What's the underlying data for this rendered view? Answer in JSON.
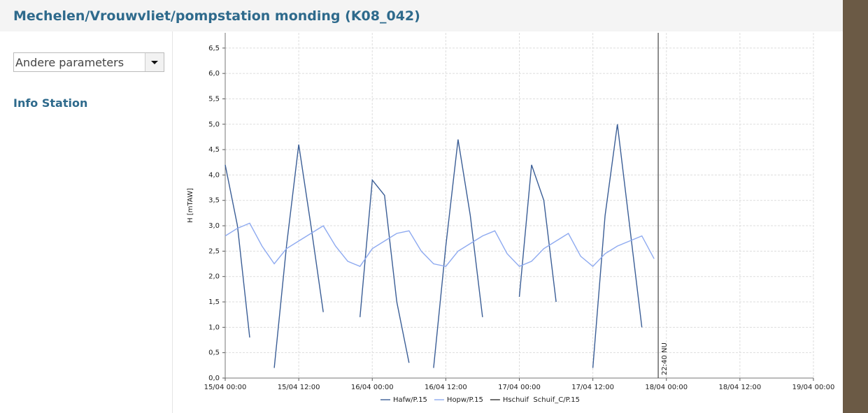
{
  "header": {
    "title": "Mechelen/Vrouwvliet/pompstation monding (K08_042)"
  },
  "sidebar": {
    "dropdown": "Andere parameters",
    "link": "Info Station"
  },
  "chart_data": {
    "type": "line",
    "ylabel": "H [mTAW]",
    "x": [
      "15/04 00:00",
      "15/04 02:00",
      "15/04 04:00",
      "15/04 06:00",
      "15/04 08:00",
      "15/04 10:00",
      "15/04 12:00",
      "15/04 14:00",
      "15/04 16:00",
      "15/04 18:00",
      "15/04 20:00",
      "15/04 22:00",
      "16/04 00:00",
      "16/04 02:00",
      "16/04 04:00",
      "16/04 06:00",
      "16/04 08:00",
      "16/04 10:00",
      "16/04 12:00",
      "16/04 14:00",
      "16/04 16:00",
      "16/04 18:00",
      "16/04 20:00",
      "16/04 22:00",
      "17/04 00:00",
      "17/04 02:00",
      "17/04 04:00",
      "17/04 06:00",
      "17/04 08:00",
      "17/04 10:00",
      "17/04 12:00",
      "17/04 14:00",
      "17/04 16:00",
      "17/04 18:00",
      "17/04 20:00",
      "17/04 22:00"
    ],
    "series": [
      {
        "name": "Hafw/P.15",
        "color": "#3b5e96",
        "values": [
          4.2,
          3.0,
          0.8,
          null,
          0.2,
          2.6,
          4.6,
          3.0,
          1.3,
          null,
          null,
          1.2,
          3.9,
          3.6,
          1.5,
          0.3,
          null,
          0.2,
          2.6,
          4.7,
          3.2,
          1.2,
          null,
          null,
          1.6,
          4.2,
          3.5,
          1.5,
          null,
          null,
          0.2,
          3.2,
          5.0,
          3.0,
          1.0,
          null
        ]
      },
      {
        "name": "Hopw/P.15",
        "color": "#8eaaf0",
        "values": [
          2.8,
          2.95,
          3.05,
          2.6,
          2.25,
          2.55,
          2.7,
          2.85,
          3.0,
          2.6,
          2.3,
          2.2,
          2.55,
          2.7,
          2.85,
          2.9,
          2.5,
          2.25,
          2.2,
          2.5,
          2.65,
          2.8,
          2.9,
          2.45,
          2.2,
          2.3,
          2.55,
          2.7,
          2.85,
          2.4,
          2.2,
          2.45,
          2.6,
          2.7,
          2.8,
          2.35
        ]
      },
      {
        "name": "Hschuif  Schuif_C/P.15",
        "color": "#333333",
        "values": [
          null,
          null,
          null,
          null,
          null,
          null,
          null,
          null,
          null,
          null,
          null,
          null,
          null,
          null,
          null,
          null,
          null,
          null,
          null,
          null,
          null,
          null,
          null,
          null,
          null,
          null,
          null,
          null,
          null,
          null,
          null,
          null,
          null,
          null,
          null,
          null
        ]
      }
    ],
    "xlim": [
      "15/04 00:00",
      "19/04 00:00"
    ],
    "xticks": [
      "15/04 00:00",
      "15/04 12:00",
      "16/04 00:00",
      "16/04 12:00",
      "17/04 00:00",
      "17/04 12:00",
      "18/04 00:00",
      "18/04 12:00",
      "19/04 00:00"
    ],
    "ylim": [
      0,
      6.8
    ],
    "yticks": [
      {
        "value": 0,
        "label": "0,0"
      },
      {
        "value": 0.5,
        "label": "0,5"
      },
      {
        "value": 1,
        "label": "1,0"
      },
      {
        "value": 1.5,
        "label": "1,5"
      },
      {
        "value": 2,
        "label": "2,0"
      },
      {
        "value": 2.5,
        "label": "2,5"
      },
      {
        "value": 3,
        "label": "3,0"
      },
      {
        "value": 3.5,
        "label": "3,5"
      },
      {
        "value": 4,
        "label": "4,0"
      },
      {
        "value": 4.5,
        "label": "4,5"
      },
      {
        "value": 5,
        "label": "5,0"
      },
      {
        "value": 5.5,
        "label": "5,5"
      },
      {
        "value": 6,
        "label": "6,0"
      },
      {
        "value": 6.5,
        "label": "6,5"
      }
    ],
    "grid": true,
    "now_marker": {
      "x": "17/04 22:40",
      "label": "22:40 NU"
    }
  }
}
